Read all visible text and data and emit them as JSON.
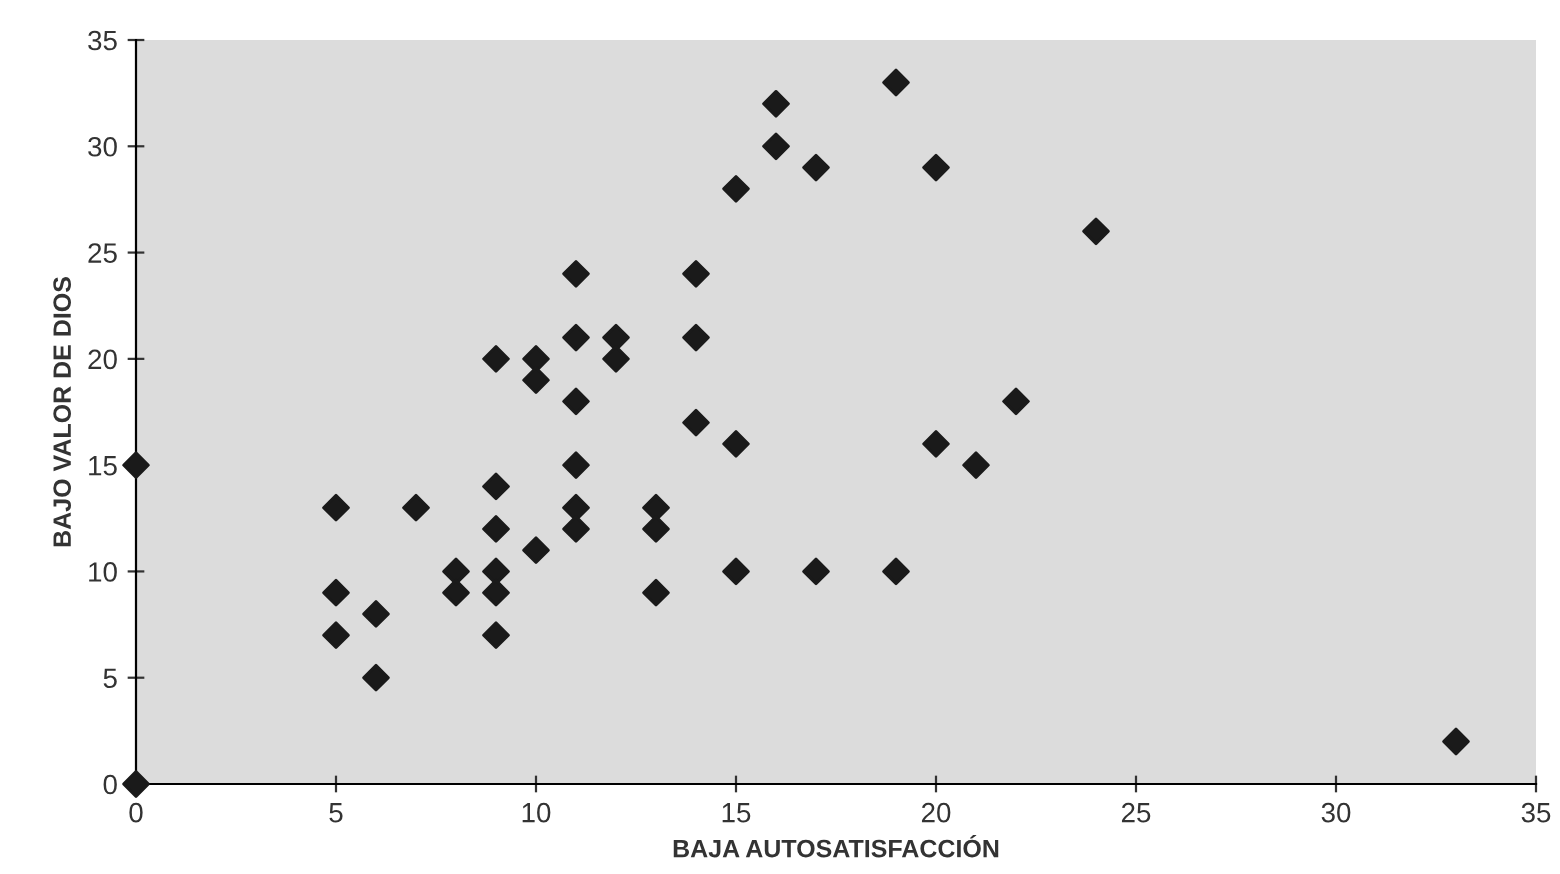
{
  "chart_data": {
    "type": "scatter",
    "xlabel": "BAJA AUTOSATISFACCIÓN",
    "ylabel": "BAJO VALOR DE DIOS",
    "x": [
      0,
      0,
      5,
      5,
      5,
      6,
      6,
      7,
      8,
      8,
      9,
      9,
      9,
      9,
      9,
      9,
      10,
      10,
      10,
      11,
      11,
      11,
      11,
      11,
      11,
      12,
      12,
      13,
      13,
      13,
      14,
      14,
      14,
      15,
      15,
      15,
      16,
      16,
      17,
      17,
      19,
      19,
      20,
      20,
      21,
      22,
      24,
      33
    ],
    "values": [
      15,
      0,
      13,
      9,
      7,
      8,
      5,
      13,
      10,
      9,
      20,
      14,
      12,
      10,
      9,
      7,
      20,
      19,
      11,
      24,
      21,
      18,
      15,
      13,
      12,
      21,
      20,
      13,
      12,
      9,
      24,
      21,
      17,
      28,
      16,
      10,
      32,
      30,
      29,
      10,
      33,
      10,
      29,
      16,
      15,
      18,
      26,
      2
    ],
    "color": "#1a1a1a",
    "marker": "diamond",
    "xlim": [
      0,
      35
    ],
    "ylim": [
      0,
      35
    ],
    "xticks": [
      0,
      5,
      10,
      15,
      20,
      25,
      30,
      35
    ],
    "yticks": [
      0,
      5,
      10,
      15,
      20,
      25,
      30,
      35
    ],
    "grid": false
  }
}
